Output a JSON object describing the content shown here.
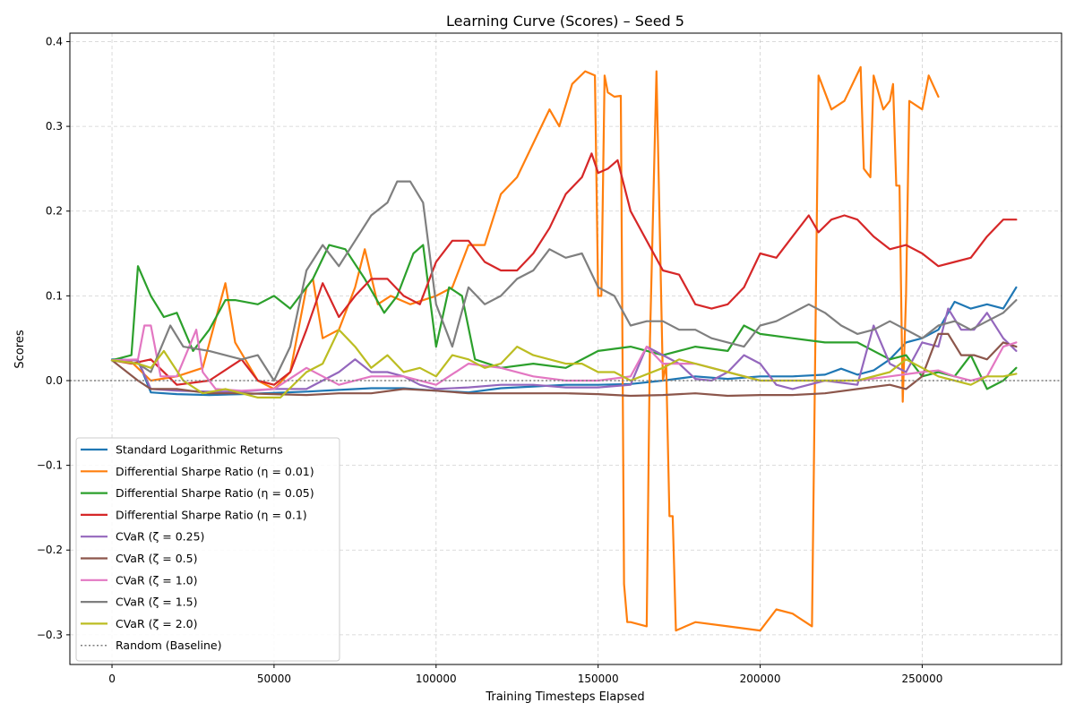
{
  "chart_data": {
    "type": "line",
    "title": "Learning Curve (Scores) – Seed 5",
    "xlabel": "Training Timesteps Elapsed",
    "ylabel": "Scores",
    "xlim": [
      -13000,
      293000
    ],
    "ylim": [
      -0.335,
      0.41
    ],
    "x_ticks": [
      0,
      50000,
      100000,
      150000,
      200000,
      250000
    ],
    "x_tick_labels": [
      "0",
      "50000",
      "100000",
      "150000",
      "200000",
      "250000"
    ],
    "y_ticks": [
      -0.3,
      -0.2,
      -0.1,
      0.0,
      0.1,
      0.2,
      0.3,
      0.4
    ],
    "y_tick_labels": [
      "−0.3",
      "−0.2",
      "−0.1",
      "0.0",
      "0.1",
      "0.2",
      "0.3",
      "0.4"
    ],
    "grid": true,
    "legend_position": "lower-left",
    "baseline": {
      "name": "Random (Baseline)",
      "value": 0.0,
      "color": "#808080",
      "style": "dotted"
    },
    "series": [
      {
        "name": "Standard Logarithmic Returns",
        "color": "#1f77b4",
        "x": [
          0,
          8000,
          12000,
          20000,
          30000,
          40000,
          60000,
          70000,
          80000,
          90000,
          100000,
          110000,
          120000,
          130000,
          140000,
          150000,
          160000,
          170000,
          180000,
          190000,
          200000,
          210000,
          220000,
          225000,
          230000,
          235000,
          240000,
          245000,
          250000,
          255000,
          260000,
          265000,
          270000,
          275000,
          279000
        ],
        "y": [
          0.025,
          0.024,
          -0.014,
          -0.016,
          -0.017,
          -0.016,
          -0.013,
          -0.011,
          -0.009,
          -0.009,
          -0.012,
          -0.014,
          -0.009,
          -0.007,
          -0.005,
          -0.005,
          -0.004,
          0.0,
          0.005,
          0.002,
          0.005,
          0.005,
          0.007,
          0.014,
          0.007,
          0.012,
          0.025,
          0.045,
          0.05,
          0.06,
          0.093,
          0.085,
          0.09,
          0.085,
          0.11
        ]
      },
      {
        "name": "Differential Sharpe Ratio ($\\eta = 0.01$)",
        "color": "#ff7f0e",
        "x": [
          0,
          6000,
          12000,
          20000,
          28000,
          35000,
          38000,
          45000,
          50000,
          55000,
          60000,
          62000,
          65000,
          70000,
          75000,
          78000,
          82000,
          86000,
          92000,
          100000,
          105000,
          110000,
          115000,
          120000,
          125000,
          130000,
          135000,
          138000,
          142000,
          146000,
          149000,
          150000,
          151000,
          152000,
          153000,
          155000,
          157000,
          158000,
          159000,
          160000,
          165000,
          166000,
          168000,
          170000,
          171000,
          172000,
          173000,
          174000,
          180000,
          190000,
          200000,
          205000,
          210000,
          216000,
          218000,
          222000,
          226000,
          231000,
          232000,
          234000,
          235000,
          238000,
          240000,
          241000,
          242000,
          243000,
          244000,
          245000,
          246000,
          250000,
          252000,
          255000
        ],
        "y": [
          0.024,
          0.022,
          0.0,
          0.005,
          0.015,
          0.115,
          0.045,
          0.0,
          -0.01,
          0.01,
          0.11,
          0.12,
          0.05,
          0.06,
          0.11,
          0.155,
          0.09,
          0.1,
          0.09,
          0.1,
          0.11,
          0.16,
          0.16,
          0.22,
          0.24,
          0.28,
          0.32,
          0.3,
          0.35,
          0.365,
          0.36,
          0.1,
          0.1,
          0.36,
          0.34,
          0.335,
          0.336,
          -0.24,
          -0.285,
          -0.285,
          -0.29,
          0.05,
          0.365,
          0.0,
          0.02,
          -0.16,
          -0.16,
          -0.295,
          -0.285,
          -0.29,
          -0.295,
          -0.27,
          -0.275,
          -0.29,
          0.36,
          0.32,
          0.33,
          0.37,
          0.25,
          0.24,
          0.36,
          0.32,
          0.33,
          0.35,
          0.23,
          0.23,
          -0.025,
          0.1,
          0.33,
          0.32,
          0.36,
          0.335
        ]
      },
      {
        "name": "Differential Sharpe Ratio ($\\eta = 0.05$)",
        "color": "#2ca02c",
        "x": [
          0,
          6000,
          8000,
          12000,
          16000,
          20000,
          25000,
          30000,
          35000,
          38000,
          45000,
          50000,
          55000,
          62000,
          67000,
          72000,
          78000,
          84000,
          88000,
          93000,
          96000,
          100000,
          104000,
          108000,
          112000,
          120000,
          130000,
          140000,
          150000,
          160000,
          170000,
          180000,
          190000,
          195000,
          200000,
          210000,
          220000,
          230000,
          240000,
          245000,
          250000,
          255000,
          260000,
          265000,
          270000,
          275000,
          279000
        ],
        "y": [
          0.024,
          0.03,
          0.135,
          0.1,
          0.075,
          0.08,
          0.035,
          0.06,
          0.095,
          0.095,
          0.09,
          0.1,
          0.085,
          0.12,
          0.16,
          0.155,
          0.12,
          0.08,
          0.1,
          0.15,
          0.16,
          0.04,
          0.11,
          0.1,
          0.025,
          0.015,
          0.02,
          0.015,
          0.035,
          0.04,
          0.03,
          0.04,
          0.035,
          0.065,
          0.055,
          0.05,
          0.045,
          0.045,
          0.025,
          0.03,
          0.005,
          0.01,
          0.005,
          0.03,
          -0.01,
          0.0,
          0.015
        ]
      },
      {
        "name": "Differential Sharpe Ratio ($\\eta = 0.1$)",
        "color": "#d62728",
        "x": [
          0,
          6000,
          12000,
          20000,
          30000,
          40000,
          45000,
          50000,
          55000,
          60000,
          65000,
          70000,
          75000,
          80000,
          85000,
          90000,
          95000,
          100000,
          105000,
          110000,
          115000,
          120000,
          125000,
          130000,
          135000,
          140000,
          145000,
          148000,
          150000,
          153000,
          156000,
          160000,
          165000,
          170000,
          175000,
          180000,
          185000,
          190000,
          195000,
          200000,
          205000,
          210000,
          215000,
          218000,
          222000,
          226000,
          230000,
          235000,
          240000,
          245000,
          250000,
          255000,
          260000,
          265000,
          270000,
          275000,
          279000
        ],
        "y": [
          0.024,
          0.02,
          0.025,
          -0.005,
          0.0,
          0.025,
          0.0,
          -0.005,
          0.01,
          0.06,
          0.115,
          0.075,
          0.1,
          0.12,
          0.12,
          0.1,
          0.09,
          0.14,
          0.165,
          0.165,
          0.14,
          0.13,
          0.13,
          0.15,
          0.18,
          0.22,
          0.24,
          0.268,
          0.245,
          0.25,
          0.26,
          0.2,
          0.165,
          0.13,
          0.125,
          0.09,
          0.085,
          0.09,
          0.11,
          0.15,
          0.145,
          0.17,
          0.195,
          0.175,
          0.19,
          0.195,
          0.19,
          0.17,
          0.155,
          0.16,
          0.15,
          0.135,
          0.14,
          0.145,
          0.17,
          0.19,
          0.19
        ]
      },
      {
        "name": "CVaR ($\\zeta = 0.25$)",
        "color": "#9467bd",
        "x": [
          0,
          8000,
          12000,
          20000,
          30000,
          40000,
          50000,
          60000,
          70000,
          75000,
          80000,
          85000,
          90000,
          95000,
          100000,
          110000,
          120000,
          130000,
          140000,
          150000,
          160000,
          165000,
          170000,
          175000,
          180000,
          185000,
          190000,
          195000,
          200000,
          205000,
          210000,
          220000,
          230000,
          235000,
          240000,
          245000,
          250000,
          255000,
          258000,
          262000,
          266000,
          270000,
          275000,
          279000
        ],
        "y": [
          0.024,
          0.024,
          -0.01,
          -0.012,
          -0.013,
          -0.013,
          -0.01,
          -0.01,
          0.01,
          0.025,
          0.01,
          0.01,
          0.005,
          -0.005,
          -0.01,
          -0.008,
          -0.005,
          -0.005,
          -0.008,
          -0.008,
          -0.005,
          0.04,
          0.03,
          0.02,
          0.002,
          0.0,
          0.01,
          0.03,
          0.02,
          -0.005,
          -0.01,
          0.0,
          -0.005,
          0.065,
          0.02,
          0.01,
          0.045,
          0.04,
          0.085,
          0.06,
          0.06,
          0.08,
          0.05,
          0.035
        ]
      },
      {
        "name": "CVaR ($\\zeta = 0.5$)",
        "color": "#8c564b",
        "x": [
          0,
          8000,
          12000,
          20000,
          30000,
          40000,
          50000,
          60000,
          70000,
          80000,
          90000,
          100000,
          110000,
          120000,
          130000,
          140000,
          150000,
          160000,
          170000,
          180000,
          190000,
          200000,
          210000,
          220000,
          230000,
          240000,
          245000,
          250000,
          255000,
          258000,
          262000,
          266000,
          270000,
          275000,
          279000
        ],
        "y": [
          0.024,
          0.0,
          -0.01,
          -0.01,
          -0.015,
          -0.015,
          -0.016,
          -0.017,
          -0.015,
          -0.015,
          -0.01,
          -0.012,
          -0.015,
          -0.015,
          -0.015,
          -0.015,
          -0.016,
          -0.018,
          -0.017,
          -0.015,
          -0.018,
          -0.017,
          -0.017,
          -0.015,
          -0.01,
          -0.005,
          -0.01,
          0.005,
          0.055,
          0.055,
          0.03,
          0.03,
          0.025,
          0.045,
          0.04
        ]
      },
      {
        "name": "CVaR ($\\zeta = 1.0$)",
        "color": "#e377c2",
        "x": [
          0,
          8000,
          10000,
          12000,
          15000,
          20000,
          26000,
          28000,
          32000,
          40000,
          50000,
          60000,
          70000,
          80000,
          90000,
          100000,
          110000,
          120000,
          130000,
          140000,
          150000,
          160000,
          165000,
          170000,
          180000,
          190000,
          200000,
          210000,
          220000,
          230000,
          240000,
          250000,
          255000,
          260000,
          265000,
          270000,
          275000,
          279000
        ],
        "y": [
          0.024,
          0.025,
          0.065,
          0.065,
          0.005,
          0.005,
          0.06,
          0.01,
          -0.01,
          -0.012,
          -0.01,
          0.015,
          -0.005,
          0.005,
          0.005,
          -0.005,
          0.02,
          0.015,
          0.005,
          0.0,
          0.0,
          0.005,
          0.04,
          0.02,
          0.02,
          0.01,
          0.0,
          0.0,
          0.0,
          0.0,
          0.005,
          0.01,
          0.012,
          0.005,
          0.0,
          0.005,
          0.04,
          0.045
        ]
      },
      {
        "name": "CVaR ($\\zeta = 1.5$)",
        "color": "#7f7f7f",
        "x": [
          0,
          8000,
          12000,
          18000,
          22000,
          30000,
          40000,
          45000,
          50000,
          55000,
          60000,
          65000,
          70000,
          75000,
          80000,
          85000,
          88000,
          92000,
          96000,
          100000,
          105000,
          110000,
          115000,
          120000,
          125000,
          130000,
          135000,
          140000,
          145000,
          150000,
          155000,
          160000,
          165000,
          170000,
          175000,
          180000,
          185000,
          190000,
          195000,
          200000,
          205000,
          210000,
          215000,
          220000,
          225000,
          230000,
          235000,
          240000,
          245000,
          250000,
          255000,
          260000,
          265000,
          270000,
          275000,
          279000
        ],
        "y": [
          0.024,
          0.02,
          0.01,
          0.065,
          0.04,
          0.035,
          0.025,
          0.03,
          0.0,
          0.04,
          0.13,
          0.16,
          0.135,
          0.165,
          0.195,
          0.21,
          0.235,
          0.235,
          0.21,
          0.09,
          0.04,
          0.11,
          0.09,
          0.1,
          0.12,
          0.13,
          0.155,
          0.145,
          0.15,
          0.11,
          0.1,
          0.065,
          0.07,
          0.07,
          0.06,
          0.06,
          0.05,
          0.045,
          0.04,
          0.065,
          0.07,
          0.08,
          0.09,
          0.08,
          0.065,
          0.055,
          0.06,
          0.07,
          0.06,
          0.05,
          0.065,
          0.07,
          0.06,
          0.07,
          0.08,
          0.095
        ]
      },
      {
        "name": "CVaR ($\\zeta = 2.0$)",
        "color": "#bcbd22",
        "x": [
          0,
          8000,
          12000,
          16000,
          22000,
          28000,
          35000,
          45000,
          52000,
          60000,
          65000,
          70000,
          75000,
          80000,
          85000,
          90000,
          95000,
          100000,
          105000,
          110000,
          115000,
          120000,
          125000,
          130000,
          135000,
          140000,
          145000,
          150000,
          155000,
          160000,
          170000,
          175000,
          180000,
          190000,
          200000,
          210000,
          220000,
          230000,
          240000,
          245000,
          250000,
          255000,
          260000,
          265000,
          270000,
          275000,
          279000
        ],
        "y": [
          0.024,
          0.02,
          0.015,
          0.035,
          0.0,
          -0.015,
          -0.01,
          -0.02,
          -0.02,
          0.01,
          0.02,
          0.06,
          0.04,
          0.015,
          0.03,
          0.01,
          0.015,
          0.005,
          0.03,
          0.025,
          0.015,
          0.02,
          0.04,
          0.03,
          0.025,
          0.02,
          0.02,
          0.01,
          0.01,
          0.0,
          0.015,
          0.025,
          0.02,
          0.01,
          0.0,
          0.0,
          0.0,
          0.0,
          0.01,
          0.025,
          0.015,
          0.005,
          0.0,
          -0.005,
          0.005,
          0.005,
          0.008
        ]
      }
    ]
  }
}
